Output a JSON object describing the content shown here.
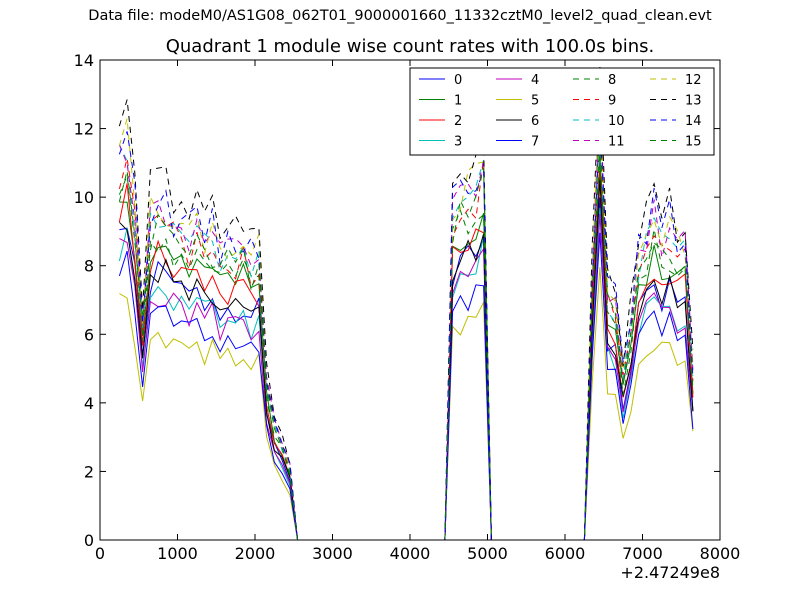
{
  "suptitle": "Data file: modeM0/AS1G08_062T01_9000001660_11332cztM0_level2_quad_clean.evt",
  "chart_data": {
    "type": "line",
    "title": "Quadrant 1 module wise count rates with 100.0s bins.",
    "xlabel": "",
    "ylabel": "",
    "x_offset_label": "+2.47249e8",
    "xlim": [
      0,
      8000
    ],
    "ylim": [
      0,
      14
    ],
    "xticks": [
      "0",
      "1000",
      "2000",
      "3000",
      "4000",
      "5000",
      "6000",
      "7000",
      "8000"
    ],
    "yticks": [
      "0",
      "2",
      "4",
      "6",
      "8",
      "10",
      "12",
      "14"
    ],
    "grid": false,
    "legend_position": "top-right",
    "legend_columns": 4,
    "series": [
      {
        "name": "0",
        "color": "#0000ff",
        "dash": "solid",
        "scale": 0.9,
        "seed": 1
      },
      {
        "name": "1",
        "color": "#008000",
        "dash": "solid",
        "scale": 1.0,
        "seed": 2
      },
      {
        "name": "2",
        "color": "#ff0000",
        "dash": "solid",
        "scale": 0.96,
        "seed": 3
      },
      {
        "name": "3",
        "color": "#00bfbf",
        "dash": "solid",
        "scale": 0.86,
        "seed": 4
      },
      {
        "name": "4",
        "color": "#bf00bf",
        "dash": "solid",
        "scale": 0.84,
        "seed": 5
      },
      {
        "name": "5",
        "color": "#bfbf00",
        "dash": "solid",
        "scale": 0.7,
        "seed": 6
      },
      {
        "name": "6",
        "color": "#000000",
        "dash": "solid",
        "scale": 0.92,
        "seed": 7
      },
      {
        "name": "7",
        "color": "#0000ff",
        "dash": "solid",
        "scale": 0.78,
        "seed": 8
      },
      {
        "name": "8",
        "color": "#008000",
        "dash": "dashed",
        "scale": 1.02,
        "seed": 9
      },
      {
        "name": "9",
        "color": "#ff0000",
        "dash": "dashed",
        "scale": 1.08,
        "seed": 10
      },
      {
        "name": "10",
        "color": "#00bfbf",
        "dash": "dashed",
        "scale": 1.1,
        "seed": 11
      },
      {
        "name": "11",
        "color": "#bf00bf",
        "dash": "dashed",
        "scale": 1.12,
        "seed": 12
      },
      {
        "name": "12",
        "color": "#bfbf00",
        "dash": "dashed",
        "scale": 1.14,
        "seed": 13
      },
      {
        "name": "13",
        "color": "#000000",
        "dash": "dashed",
        "scale": 1.22,
        "seed": 14
      },
      {
        "name": "14",
        "color": "#0000ff",
        "dash": "dashed",
        "scale": 1.16,
        "seed": 15
      },
      {
        "name": "15",
        "color": "#008000",
        "dash": "dashed",
        "scale": 1.06,
        "seed": 16
      }
    ],
    "x": [
      250,
      350,
      450,
      550,
      650,
      750,
      850,
      950,
      1050,
      1150,
      1250,
      1350,
      1450,
      1550,
      1650,
      1750,
      1850,
      1950,
      2050,
      2150,
      2250,
      2350,
      2450,
      2550,
      2650,
      4450,
      4550,
      4650,
      4750,
      4850,
      4950,
      5050,
      5150,
      6250,
      6350,
      6450,
      6550,
      6650,
      6750,
      6850,
      6950,
      7050,
      7150,
      7250,
      7350,
      7450,
      7550,
      7650
    ],
    "base_profile": [
      10.0,
      10.3,
      8.5,
      5.8,
      8.4,
      8.6,
      8.5,
      8.1,
      8.3,
      7.8,
      8.0,
      7.7,
      7.9,
      7.3,
      7.6,
      7.5,
      7.7,
      7.2,
      7.4,
      4.2,
      3.0,
      2.5,
      1.9,
      0.0,
      0.0,
      0.0,
      8.6,
      8.9,
      9.0,
      9.2,
      9.8,
      0.0,
      0.0,
      0.0,
      6.6,
      11.2,
      6.4,
      6.1,
      4.3,
      5.6,
      7.3,
      7.9,
      8.4,
      7.8,
      8.1,
      7.5,
      7.7,
      4.3
    ]
  },
  "legend": {
    "labels": [
      "0",
      "1",
      "2",
      "3",
      "4",
      "5",
      "6",
      "7",
      "8",
      "9",
      "10",
      "11",
      "12",
      "13",
      "14",
      "15"
    ]
  }
}
